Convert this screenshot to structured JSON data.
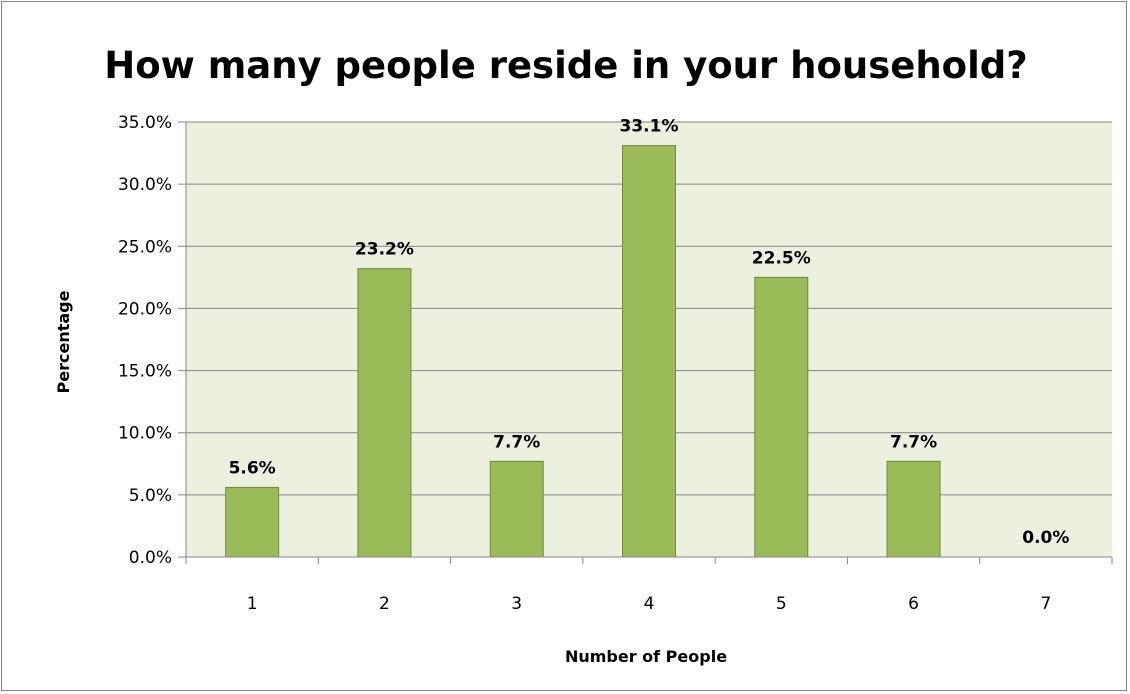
{
  "chart_data": {
    "type": "bar",
    "title": "How many people reside in your household?",
    "xlabel": "Number of People",
    "ylabel": "Percentage",
    "categories": [
      "1",
      "2",
      "3",
      "4",
      "5",
      "6",
      "7"
    ],
    "values": [
      5.6,
      23.2,
      7.7,
      33.1,
      22.5,
      7.7,
      0.0
    ],
    "data_labels": [
      "5.6%",
      "23.2%",
      "7.7%",
      "33.1%",
      "22.5%",
      "7.7%",
      "0.0%"
    ],
    "ylim": [
      0,
      35
    ],
    "y_ticks": [
      0,
      5,
      10,
      15,
      20,
      25,
      30,
      35
    ],
    "y_tick_labels": [
      "0.0%",
      "5.0%",
      "10.0%",
      "15.0%",
      "20.0%",
      "25.0%",
      "30.0%",
      "35.0%"
    ],
    "grid": true,
    "legend": "none",
    "colors": {
      "bar_fill": "#9BBB59",
      "bar_stroke": "#71893F",
      "plot_background": "#EBF1DE",
      "gridline": "#868686"
    }
  }
}
